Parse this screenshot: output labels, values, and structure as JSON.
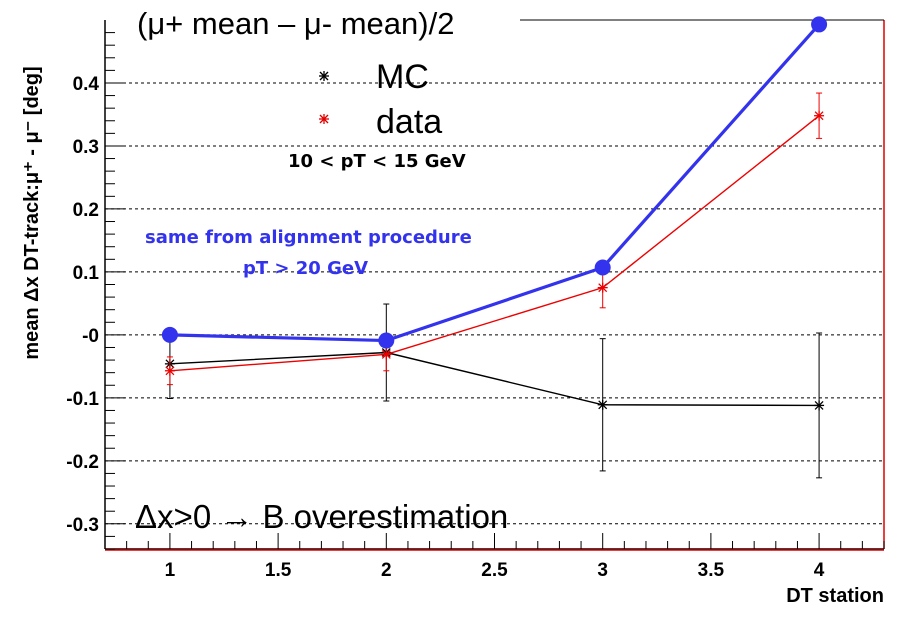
{
  "chart_data": {
    "type": "line",
    "title": "(μ+ mean – μ- mean)/2",
    "xlabel": "DT station",
    "ylabel": "mean Δx DT-track:μ⁺ - μ⁻ [deg]",
    "xlim": [
      0.7,
      4.3
    ],
    "ylim": [
      -0.34,
      0.5
    ],
    "x_ticks": [
      1,
      1.5,
      2,
      2.5,
      3,
      3.5,
      4
    ],
    "x_tick_labels": [
      "1",
      "1.5",
      "2",
      "2.5",
      "3",
      "3.5",
      "4"
    ],
    "y_ticks": [
      -0.3,
      -0.2,
      -0.1,
      0,
      0.1,
      0.2,
      0.3,
      0.4
    ],
    "y_tick_labels": [
      "-0.3",
      "-0.2",
      "-0.1",
      "-0",
      "0.1",
      "0.2",
      "0.3",
      "0.4"
    ],
    "grid": "horizontal dashed",
    "series": [
      {
        "name": "MC",
        "color": "#000000",
        "marker": "star",
        "x": [
          1,
          2,
          3,
          4
        ],
        "y": [
          -0.046,
          -0.028,
          -0.111,
          -0.112
        ],
        "err": [
          0.055,
          0.077,
          0.105,
          0.115
        ]
      },
      {
        "name": "data",
        "color": "#ee0000",
        "marker": "star",
        "x": [
          1,
          2,
          3,
          4
        ],
        "y": [
          -0.057,
          -0.031,
          0.075,
          0.348
        ],
        "err": [
          0.022,
          0.026,
          0.032,
          0.036
        ]
      },
      {
        "name": "same from alignment procedure pT > 20 GeV",
        "color": "#3333ee",
        "marker": "circle",
        "x": [
          1,
          2,
          3,
          4
        ],
        "y": [
          0.0,
          -0.009,
          0.107,
          0.493
        ],
        "err": []
      }
    ],
    "legend": {
      "position": "top-left",
      "entries": [
        "MC",
        "data"
      ],
      "subtitle": "10 < pT < 15 GeV"
    },
    "annotations": {
      "blue_line1": "same from alignment procedure",
      "blue_line2": "pT > 20 GeV",
      "bottom": "Δx>0 → B overestimation"
    }
  }
}
